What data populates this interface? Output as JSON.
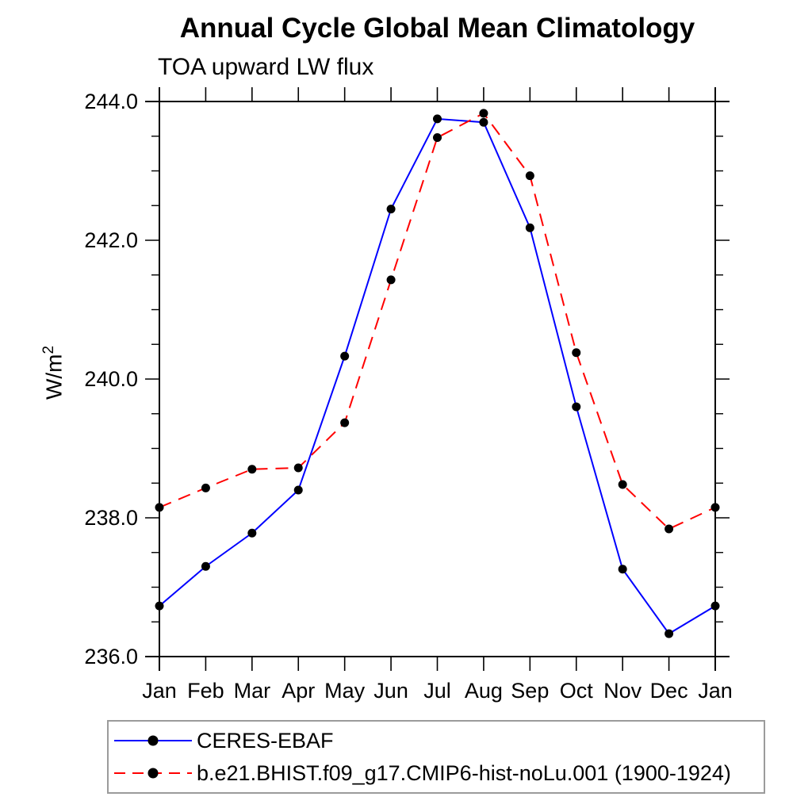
{
  "chart_data": {
    "type": "line",
    "title": "Annual Cycle Global Mean Climatology",
    "subtitle": "TOA upward LW flux",
    "ylabel": "W/m²",
    "xlabel": "",
    "categories": [
      "Jan",
      "Feb",
      "Mar",
      "Apr",
      "May",
      "Jun",
      "Jul",
      "Aug",
      "Sep",
      "Oct",
      "Nov",
      "Dec",
      "Jan"
    ],
    "ylim": [
      236.0,
      244.0
    ],
    "ytick_major": [
      236.0,
      238.0,
      240.0,
      242.0,
      244.0
    ],
    "ytick_minor_step": 0.5,
    "grid": false,
    "legend_position": "bottom-left",
    "marker_color": "#000000",
    "axis_color": "#000000",
    "series": [
      {
        "name": "CERES-EBAF",
        "color": "#0000ff",
        "style": "solid",
        "marker": "circle",
        "values": [
          236.73,
          237.3,
          237.78,
          238.4,
          240.33,
          242.45,
          243.75,
          243.7,
          242.18,
          239.6,
          237.26,
          236.33,
          236.73
        ]
      },
      {
        "name": "b.e21.BHIST.f09_g17.CMIP6-hist-noLu.001 (1900-1924)",
        "color": "#ff0000",
        "style": "dashed",
        "marker": "circle",
        "values": [
          238.15,
          238.43,
          238.7,
          238.72,
          239.37,
          241.43,
          243.48,
          243.83,
          242.93,
          240.38,
          238.48,
          237.84,
          238.15
        ]
      }
    ]
  }
}
